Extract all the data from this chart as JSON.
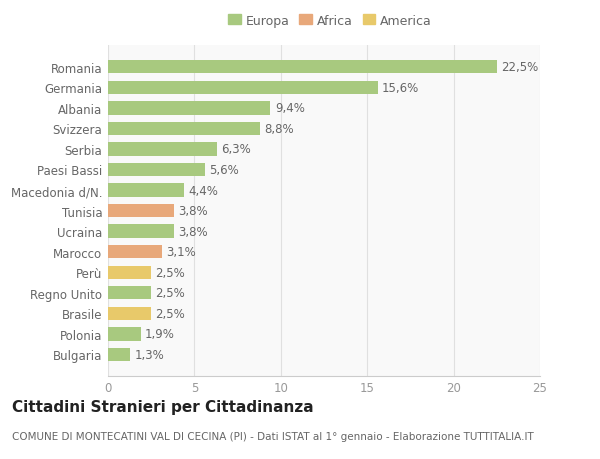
{
  "categories": [
    "Bulgaria",
    "Polonia",
    "Brasile",
    "Regno Unito",
    "Perù",
    "Marocco",
    "Ucraina",
    "Tunisia",
    "Macedonia d/N.",
    "Paesi Bassi",
    "Serbia",
    "Svizzera",
    "Albania",
    "Germania",
    "Romania"
  ],
  "values": [
    1.3,
    1.9,
    2.5,
    2.5,
    2.5,
    3.1,
    3.8,
    3.8,
    4.4,
    5.6,
    6.3,
    8.8,
    9.4,
    15.6,
    22.5
  ],
  "colors": [
    "#a8c97f",
    "#a8c97f",
    "#e8c96a",
    "#a8c97f",
    "#e8c96a",
    "#e8a87a",
    "#a8c97f",
    "#e8a87a",
    "#a8c97f",
    "#a8c97f",
    "#a8c97f",
    "#a8c97f",
    "#a8c97f",
    "#a8c97f",
    "#a8c97f"
  ],
  "labels": [
    "1,3%",
    "1,9%",
    "2,5%",
    "2,5%",
    "2,5%",
    "3,1%",
    "3,8%",
    "3,8%",
    "4,4%",
    "5,6%",
    "6,3%",
    "8,8%",
    "9,4%",
    "15,6%",
    "22,5%"
  ],
  "legend": [
    {
      "label": "Europa",
      "color": "#a8c97f"
    },
    {
      "label": "Africa",
      "color": "#e8a87a"
    },
    {
      "label": "America",
      "color": "#e8c96a"
    }
  ],
  "xlim": [
    0,
    25
  ],
  "xticks": [
    0,
    5,
    10,
    15,
    20,
    25
  ],
  "title": "Cittadini Stranieri per Cittadinanza",
  "subtitle": "COMUNE DI MONTECATINI VAL DI CECINA (PI) - Dati ISTAT al 1° gennaio - Elaborazione TUTTITALIA.IT",
  "background_color": "#ffffff",
  "plot_bg_color": "#f9f9f9",
  "grid_color": "#e0e0e0",
  "bar_height": 0.65,
  "label_fontsize": 8.5,
  "tick_fontsize": 8.5,
  "title_fontsize": 11,
  "subtitle_fontsize": 7.5
}
